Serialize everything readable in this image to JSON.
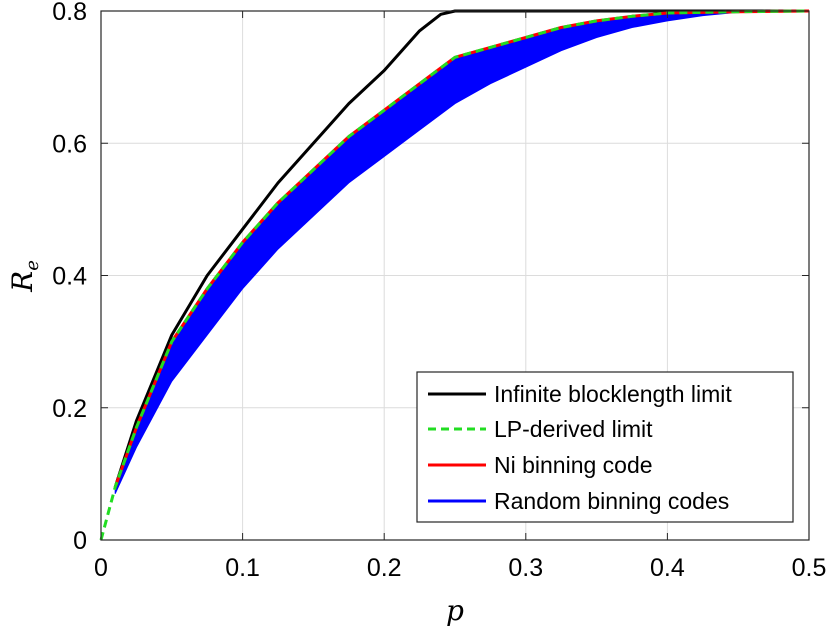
{
  "chart_data": {
    "type": "line",
    "title": "",
    "xlabel": "p",
    "ylabel": "R",
    "ylabel_subscript": "e",
    "xlim": [
      0,
      0.5
    ],
    "ylim": [
      0,
      0.8
    ],
    "xticks": [
      0,
      0.1,
      0.2,
      0.3,
      0.4,
      0.5
    ],
    "xtick_labels": [
      "0",
      "0.1",
      "0.2",
      "0.3",
      "0.4",
      "0.5"
    ],
    "yticks": [
      0,
      0.2,
      0.4,
      0.6,
      0.8
    ],
    "ytick_labels": [
      "0",
      "0.2",
      "0.4",
      "0.6",
      "0.8"
    ],
    "grid": true,
    "legend_position": "bottom-right",
    "series": [
      {
        "name": "Infinite blocklength limit",
        "color": "#000000",
        "style": "solid",
        "x": [
          0.01,
          0.025,
          0.05,
          0.075,
          0.1,
          0.125,
          0.15,
          0.175,
          0.2,
          0.225,
          0.24,
          0.25,
          0.3,
          0.4,
          0.5
        ],
        "y": [
          0.08,
          0.18,
          0.31,
          0.4,
          0.47,
          0.54,
          0.6,
          0.66,
          0.71,
          0.77,
          0.795,
          0.8,
          0.8,
          0.8,
          0.8
        ]
      },
      {
        "name": "LP-derived limit",
        "color": "#22dd22",
        "style": "dashed",
        "x": [
          0,
          0.01,
          0.025,
          0.05,
          0.075,
          0.1,
          0.125,
          0.15,
          0.175,
          0.2,
          0.225,
          0.25,
          0.275,
          0.3,
          0.325,
          0.35,
          0.375,
          0.4,
          0.45,
          0.5
        ],
        "y": [
          0,
          0.08,
          0.17,
          0.3,
          0.38,
          0.45,
          0.51,
          0.56,
          0.61,
          0.65,
          0.69,
          0.73,
          0.745,
          0.76,
          0.775,
          0.785,
          0.792,
          0.797,
          0.799,
          0.8
        ]
      },
      {
        "name": "Ni binning code",
        "color": "#ff0000",
        "style": "solid",
        "x": [
          0.01,
          0.025,
          0.05,
          0.075,
          0.1,
          0.125,
          0.15,
          0.175,
          0.2,
          0.225,
          0.25,
          0.275,
          0.3,
          0.325,
          0.35,
          0.375,
          0.4,
          0.45,
          0.5
        ],
        "y": [
          0.08,
          0.17,
          0.3,
          0.38,
          0.45,
          0.51,
          0.56,
          0.61,
          0.65,
          0.69,
          0.73,
          0.745,
          0.76,
          0.775,
          0.785,
          0.792,
          0.797,
          0.799,
          0.8
        ]
      },
      {
        "name": "Random binning codes",
        "color": "#0000ff",
        "style": "band",
        "x": [
          0.01,
          0.025,
          0.05,
          0.075,
          0.1,
          0.125,
          0.15,
          0.175,
          0.2,
          0.225,
          0.25,
          0.275,
          0.3,
          0.325,
          0.35,
          0.375,
          0.4,
          0.425,
          0.45,
          0.475,
          0.5
        ],
        "y_upper": [
          0.08,
          0.17,
          0.3,
          0.38,
          0.45,
          0.51,
          0.56,
          0.61,
          0.65,
          0.69,
          0.73,
          0.745,
          0.76,
          0.775,
          0.785,
          0.792,
          0.797,
          0.798,
          0.799,
          0.8,
          0.8
        ],
        "y_lower": [
          0.07,
          0.14,
          0.24,
          0.31,
          0.38,
          0.44,
          0.49,
          0.54,
          0.58,
          0.62,
          0.66,
          0.69,
          0.715,
          0.74,
          0.76,
          0.775,
          0.785,
          0.793,
          0.798,
          0.8,
          0.8
        ]
      }
    ]
  }
}
